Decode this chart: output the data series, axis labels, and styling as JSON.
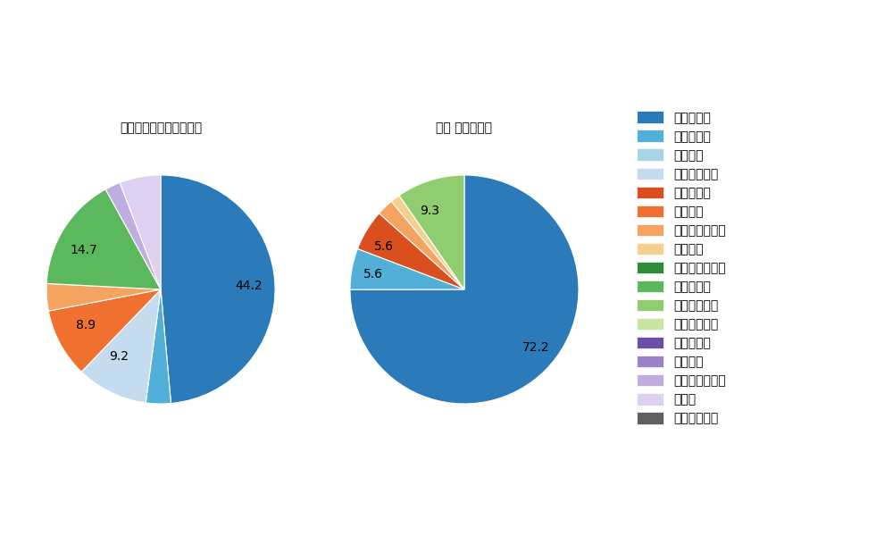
{
  "left_title": "セ・リーグ全プレイヤー",
  "right_title": "石田 健大　選手",
  "pitch_types": [
    "ストレート",
    "ツーシーム",
    "シュート",
    "カットボール",
    "スプリット",
    "フォーク",
    "チェンジアップ",
    "シンカー",
    "高速スライダー",
    "スライダー",
    "縦スライダー",
    "パワーカーブ",
    "スクリュー",
    "ナックル",
    "ナックルカーブ",
    "カーブ",
    "スローカーブ"
  ],
  "colors": [
    "#2b7bba",
    "#52b0d8",
    "#a8d4e8",
    "#c5dcee",
    "#d94f1e",
    "#f07030",
    "#f4a460",
    "#f5d090",
    "#2e8b3a",
    "#5cb85c",
    "#90cc70",
    "#c8e6a0",
    "#6a4fa8",
    "#9b82c8",
    "#c0aee0",
    "#ddd0f0",
    "#606060"
  ],
  "left_values": [
    44.2,
    3.2,
    0.0,
    9.2,
    0.0,
    8.9,
    3.5,
    0.0,
    0.0,
    14.7,
    0.0,
    0.0,
    0.0,
    0.0,
    2.0,
    5.3,
    0.0
  ],
  "left_labels": [
    "44.2",
    "",
    "",
    "9.2",
    "",
    "8.9",
    "",
    "",
    "",
    "14.7",
    "",
    "",
    "",
    "",
    "",
    "",
    ""
  ],
  "right_values": [
    72.2,
    5.6,
    0.0,
    0.0,
    5.6,
    0.0,
    2.3,
    1.3,
    0.0,
    0.0,
    9.3,
    0.0,
    0.0,
    0.0,
    0.0,
    0.0,
    0.0
  ],
  "right_labels": [
    "72.2",
    "5.6",
    "",
    "",
    "5.6",
    "",
    "",
    "",
    "",
    "",
    "9.3",
    "",
    "",
    "",
    "",
    "",
    ""
  ],
  "bg_color": "#ffffff",
  "label_fontsize": 12,
  "title_fontsize": 13,
  "legend_fontsize": 11
}
